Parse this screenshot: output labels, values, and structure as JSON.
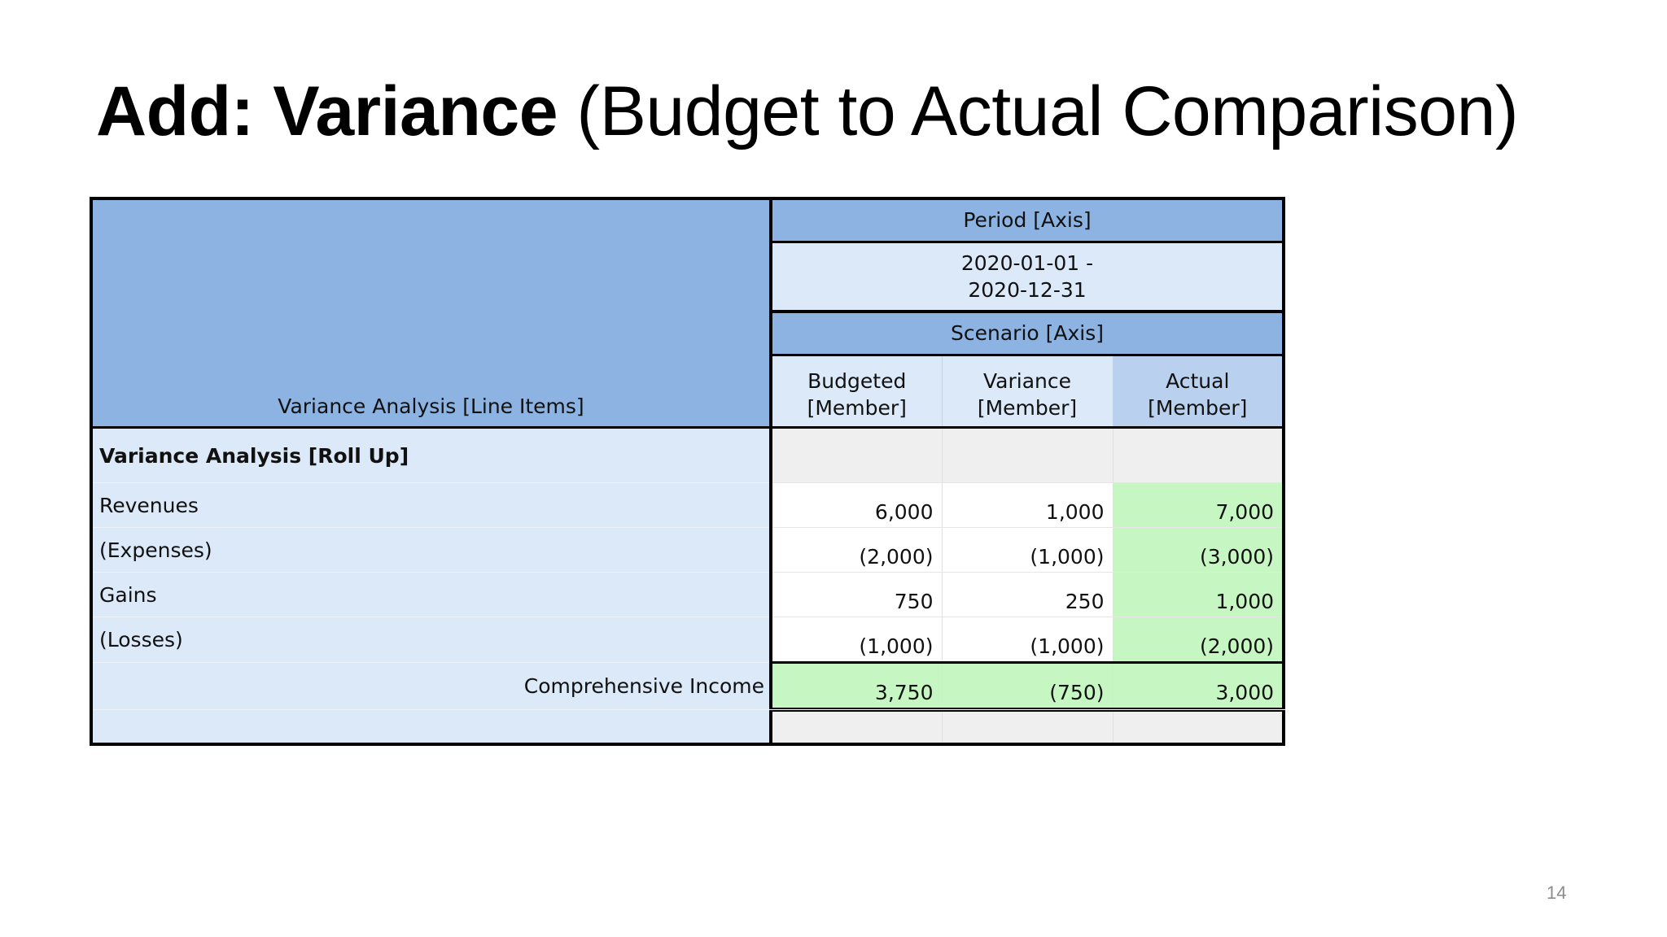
{
  "slide": {
    "title_bold": "Add: Variance",
    "title_rest": " (Budget to Actual Comparison)",
    "page_number": "14"
  },
  "table": {
    "line_items_header": "Variance Analysis [Line Items]",
    "period_axis": "Period [Axis]",
    "period_value_line1": "2020-01-01 -",
    "period_value_line2": "2020-12-31",
    "scenario_axis": "Scenario [Axis]",
    "members": [
      {
        "line1": "Budgeted",
        "line2": "[Member]"
      },
      {
        "line1": "Variance",
        "line2": "[Member]"
      },
      {
        "line1": "",
        "line2": "Actual [Member]"
      }
    ],
    "rollup_label": "Variance Analysis [Roll Up]",
    "rows": [
      {
        "label": "Revenues",
        "budgeted": "6,000",
        "variance": "1,000",
        "actual": "7,000"
      },
      {
        "label": "(Expenses)",
        "budgeted": "(2,000)",
        "variance": "(1,000)",
        "actual": "(3,000)"
      },
      {
        "label": "Gains",
        "budgeted": "750",
        "variance": "250",
        "actual": "1,000"
      },
      {
        "label": "(Losses)",
        "budgeted": "(1,000)",
        "variance": "(1,000)",
        "actual": "(2,000)"
      }
    ],
    "total": {
      "label": "Comprehensive Income",
      "budgeted": "3,750",
      "variance": "(750)",
      "actual": "3,000"
    }
  },
  "colors": {
    "header_blue": "#8db3e2",
    "row_label_bg": "#dce9f8",
    "actual_green": "#c6f7c3"
  }
}
